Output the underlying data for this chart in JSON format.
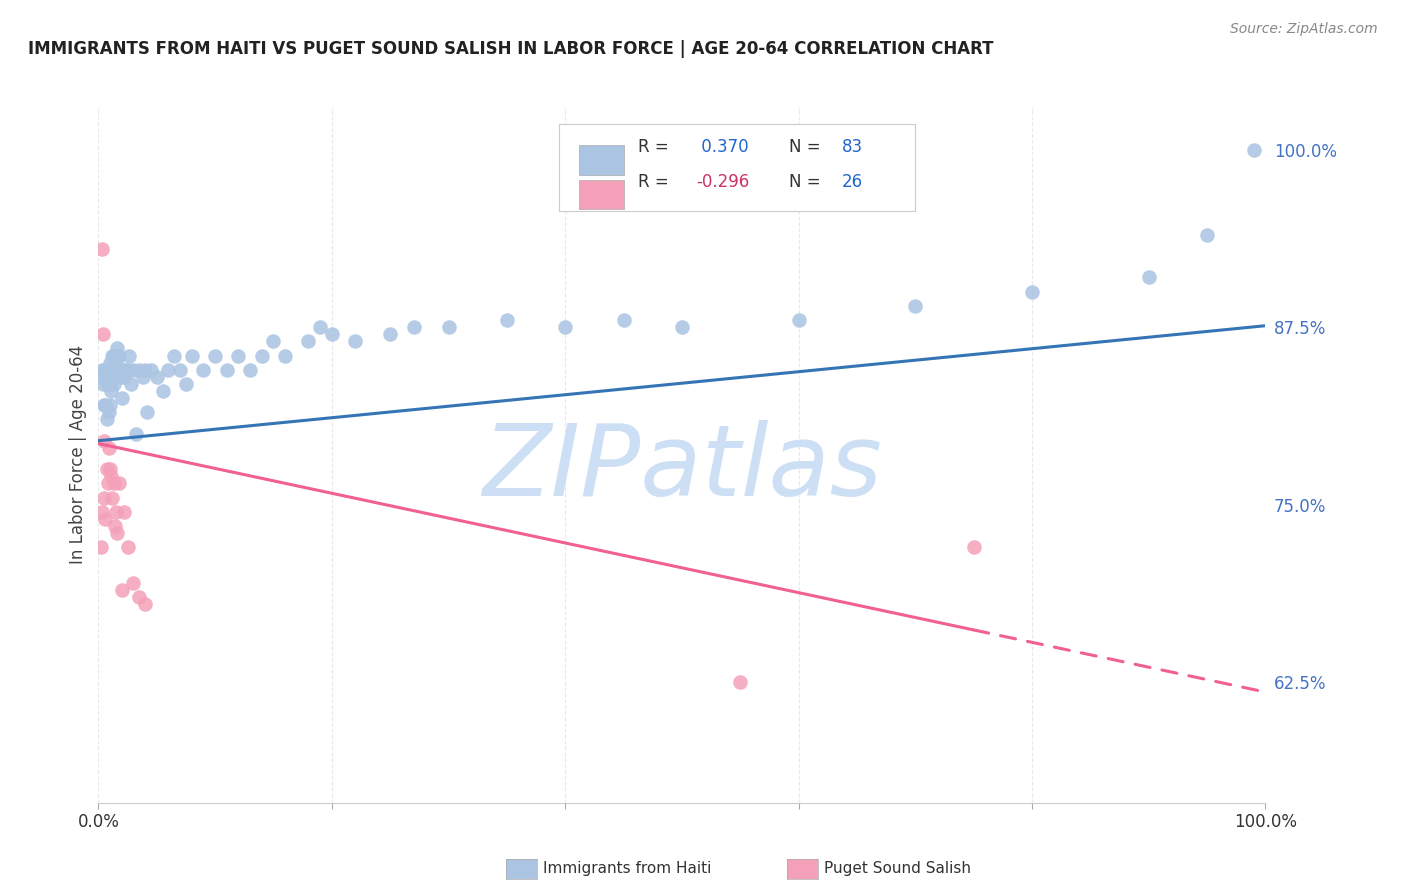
{
  "title": "IMMIGRANTS FROM HAITI VS PUGET SOUND SALISH IN LABOR FORCE | AGE 20-64 CORRELATION CHART",
  "source": "Source: ZipAtlas.com",
  "ylabel": "In Labor Force | Age 20-64",
  "xlim": [
    0.0,
    1.0
  ],
  "ylim": [
    0.54,
    1.03
  ],
  "right_yticks": [
    0.625,
    0.75,
    0.875,
    1.0
  ],
  "right_yticklabels": [
    "62.5%",
    "75.0%",
    "87.5%",
    "100.0%"
  ],
  "haiti_color": "#aac4e2",
  "salish_color": "#f4a0b8",
  "haiti_line_color": "#3575b5",
  "salish_line_color": "#f06090",
  "haiti_scatter_x": [
    0.003,
    0.004,
    0.005,
    0.005,
    0.006,
    0.006,
    0.007,
    0.007,
    0.008,
    0.008,
    0.009,
    0.009,
    0.009,
    0.01,
    0.01,
    0.01,
    0.011,
    0.011,
    0.012,
    0.012,
    0.013,
    0.013,
    0.013,
    0.014,
    0.014,
    0.015,
    0.015,
    0.016,
    0.016,
    0.017,
    0.017,
    0.018,
    0.018,
    0.019,
    0.02,
    0.02,
    0.021,
    0.022,
    0.023,
    0.025,
    0.026,
    0.028,
    0.03,
    0.032,
    0.035,
    0.038,
    0.04,
    0.042,
    0.045,
    0.05,
    0.055,
    0.06,
    0.065,
    0.07,
    0.075,
    0.08,
    0.09,
    0.1,
    0.11,
    0.12,
    0.13,
    0.14,
    0.15,
    0.16,
    0.18,
    0.19,
    0.2,
    0.22,
    0.25,
    0.27,
    0.3,
    0.35,
    0.4,
    0.45,
    0.5,
    0.6,
    0.7,
    0.8,
    0.9,
    0.95,
    0.99
  ],
  "haiti_scatter_y": [
    0.845,
    0.835,
    0.82,
    0.84,
    0.845,
    0.82,
    0.84,
    0.81,
    0.84,
    0.835,
    0.845,
    0.835,
    0.815,
    0.85,
    0.835,
    0.82,
    0.845,
    0.83,
    0.855,
    0.845,
    0.855,
    0.845,
    0.835,
    0.85,
    0.84,
    0.855,
    0.845,
    0.86,
    0.845,
    0.855,
    0.845,
    0.855,
    0.845,
    0.84,
    0.845,
    0.825,
    0.845,
    0.84,
    0.845,
    0.845,
    0.855,
    0.835,
    0.845,
    0.8,
    0.845,
    0.84,
    0.845,
    0.815,
    0.845,
    0.84,
    0.83,
    0.845,
    0.855,
    0.845,
    0.835,
    0.855,
    0.845,
    0.855,
    0.845,
    0.855,
    0.845,
    0.855,
    0.865,
    0.855,
    0.865,
    0.875,
    0.87,
    0.865,
    0.87,
    0.875,
    0.875,
    0.88,
    0.875,
    0.88,
    0.875,
    0.88,
    0.89,
    0.9,
    0.91,
    0.94,
    1.0
  ],
  "salish_scatter_x": [
    0.002,
    0.003,
    0.004,
    0.005,
    0.005,
    0.006,
    0.007,
    0.008,
    0.009,
    0.01,
    0.011,
    0.012,
    0.013,
    0.014,
    0.015,
    0.016,
    0.018,
    0.02,
    0.022,
    0.025,
    0.03,
    0.035,
    0.04,
    0.55,
    0.75,
    0.003
  ],
  "salish_scatter_y": [
    0.72,
    0.745,
    0.87,
    0.795,
    0.755,
    0.74,
    0.775,
    0.765,
    0.79,
    0.775,
    0.77,
    0.755,
    0.765,
    0.735,
    0.745,
    0.73,
    0.765,
    0.69,
    0.745,
    0.72,
    0.695,
    0.685,
    0.68,
    0.625,
    0.72,
    0.93
  ],
  "haiti_trend_x": [
    0.0,
    1.0
  ],
  "haiti_trend_y": [
    0.795,
    0.876
  ],
  "salish_trend_x0": 0.0,
  "salish_trend_x_solid": 0.75,
  "salish_trend_x1": 1.0,
  "salish_trend_y0": 0.793,
  "salish_trend_y1": 0.618,
  "watermark": "ZIPatlas",
  "watermark_color": "#cddff5",
  "background_color": "#ffffff",
  "grid_color": "#e8e8e8",
  "title_color": "#222222",
  "axis_label_color": "#444444",
  "right_tick_color": "#4472c4"
}
